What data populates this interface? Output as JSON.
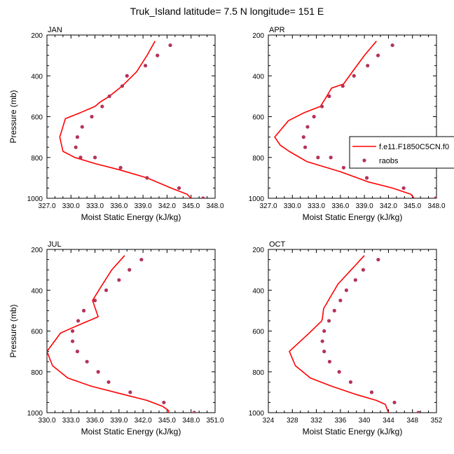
{
  "figure": {
    "title": "Truk_Island  latitude= 7.5 N longitude= 151 E"
  },
  "colors": {
    "model_line": "#ff0000",
    "obs_marker": "#b5335a",
    "axes": "#000000"
  },
  "legend": {
    "items": [
      {
        "label": "f.e11.F1850C5CN.f0",
        "style": "line"
      },
      {
        "label": "raobs",
        "style": "marker"
      }
    ]
  },
  "chart_data": [
    {
      "type": "line",
      "panel_label": "JAN",
      "xlabel": "Moist Static Energy (kJ/kg)",
      "ylabel": "Pressure (mb)",
      "xlim": [
        327,
        348
      ],
      "ylim": [
        200,
        1000
      ],
      "y_inverted": true,
      "xticks": [
        "327.0",
        "330.0",
        "333.0",
        "336.0",
        "339.0",
        "342.0",
        "345.0",
        "348.0"
      ],
      "yticks": [
        "200",
        "400",
        "600",
        "800",
        "1000"
      ],
      "series": [
        {
          "name": "f.e11.F1850C5CN.f0",
          "style": "line",
          "x": [
            340.5,
            339.5,
            338.2,
            336.4,
            334.8,
            333.6,
            333.0,
            331.2,
            329.3,
            328.6,
            329.0,
            330.5,
            333.0,
            336.0,
            339.5,
            342.5,
            344.5,
            345.0
          ],
          "y": [
            230,
            300,
            380,
            450,
            500,
            530,
            550,
            580,
            610,
            700,
            770,
            800,
            830,
            860,
            900,
            950,
            980,
            1000
          ]
        },
        {
          "name": "raobs",
          "style": "marker",
          "x": [
            342.4,
            340.8,
            339.3,
            337.0,
            336.4,
            334.8,
            333.9,
            332.6,
            331.4,
            330.8,
            330.6,
            331.2,
            333.0,
            336.2,
            339.5,
            343.5,
            346.5
          ],
          "y": [
            250,
            300,
            350,
            400,
            450,
            500,
            550,
            600,
            650,
            700,
            750,
            800,
            800,
            850,
            900,
            950,
            1000
          ]
        }
      ]
    },
    {
      "type": "line",
      "panel_label": "APR",
      "xlabel": "Moist Static Energy (kJ/kg)",
      "ylabel": "",
      "xlim": [
        327,
        348
      ],
      "ylim": [
        200,
        1000
      ],
      "y_inverted": true,
      "xticks": [
        "327.0",
        "330.0",
        "333.0",
        "336.0",
        "339.0",
        "342.0",
        "345.0",
        "348.0"
      ],
      "yticks": [
        "200",
        "400",
        "600",
        "800",
        "1000"
      ],
      "series": [
        {
          "name": "f.e11.F1850C5CN.f0",
          "style": "line",
          "x": [
            340.5,
            339.0,
            337.5,
            336.4,
            334.9,
            334.3,
            333.5,
            331.5,
            329.5,
            327.8,
            328.5,
            329.6,
            331.8,
            336.0,
            339.5,
            342.5,
            344.8,
            345.2
          ],
          "y": [
            230,
            300,
            380,
            440,
            460,
            500,
            550,
            580,
            620,
            700,
            740,
            770,
            820,
            870,
            920,
            950,
            980,
            1000
          ]
        },
        {
          "name": "raobs",
          "style": "marker",
          "x": [
            342.5,
            340.7,
            339.4,
            337.7,
            336.3,
            334.6,
            333.7,
            332.7,
            331.9,
            331.4,
            331.6,
            333.2,
            334.8,
            336.4,
            339.3,
            343.9,
            347.9
          ],
          "y": [
            250,
            300,
            350,
            400,
            450,
            500,
            550,
            600,
            650,
            700,
            750,
            800,
            800,
            850,
            900,
            950,
            1000
          ]
        }
      ]
    },
    {
      "type": "line",
      "panel_label": "JUL",
      "xlabel": "Moist Static Energy (kJ/kg)",
      "ylabel": "Pressure (mb)",
      "xlim": [
        330,
        351
      ],
      "ylim": [
        200,
        1000
      ],
      "y_inverted": true,
      "xticks": [
        "330.0",
        "333.0",
        "336.0",
        "339.0",
        "342.0",
        "345.0",
        "348.0",
        "351.0"
      ],
      "yticks": [
        "200",
        "400",
        "600",
        "800",
        "1000"
      ],
      "series": [
        {
          "name": "f.e11.F1850C5CN.f0",
          "style": "line",
          "x": [
            339.7,
            338.1,
            336.8,
            335.7,
            336.4,
            334.6,
            333.4,
            331.7,
            330.0,
            330.7,
            332.6,
            335.5,
            339.5,
            342.5,
            344.5,
            345.2,
            345.2
          ],
          "y": [
            230,
            300,
            380,
            450,
            530,
            560,
            580,
            610,
            700,
            770,
            830,
            870,
            910,
            940,
            970,
            990,
            1000
          ]
        },
        {
          "name": "raobs",
          "style": "marker",
          "x": [
            341.8,
            340.3,
            339.0,
            337.4,
            336.0,
            334.6,
            333.9,
            333.2,
            333.2,
            333.8,
            335.0,
            336.4,
            337.7,
            340.4,
            344.6,
            348.4
          ],
          "y": [
            250,
            300,
            350,
            400,
            450,
            500,
            550,
            600,
            650,
            700,
            750,
            800,
            850,
            900,
            950,
            1000
          ]
        }
      ]
    },
    {
      "type": "line",
      "panel_label": "OCT",
      "xlabel": "Moist Static Energy (kJ/kg)",
      "ylabel": "",
      "xlim": [
        324,
        352
      ],
      "ylim": [
        200,
        1000
      ],
      "y_inverted": true,
      "xticks": [
        "324",
        "328",
        "332",
        "336",
        "340",
        "344",
        "348",
        "352"
      ],
      "yticks": [
        "200",
        "400",
        "600",
        "800",
        "1000"
      ],
      "series": [
        {
          "name": "f.e11.F1850C5CN.f0",
          "style": "line",
          "x": [
            340.0,
            337.8,
            335.6,
            334.4,
            333.2,
            333.0,
            332.9,
            330.8,
            327.5,
            328.5,
            331.0,
            334.5,
            338.5,
            342.0,
            343.5,
            344.0
          ],
          "y": [
            230,
            300,
            370,
            430,
            490,
            540,
            550,
            610,
            700,
            770,
            830,
            870,
            910,
            940,
            960,
            1000
          ]
        },
        {
          "name": "raobs",
          "style": "marker",
          "x": [
            342.3,
            339.8,
            338.5,
            337.0,
            336.0,
            335.0,
            334.1,
            333.3,
            333.0,
            333.3,
            334.2,
            335.8,
            337.7,
            341.2,
            345.0,
            349.0
          ],
          "y": [
            250,
            300,
            350,
            400,
            450,
            500,
            550,
            600,
            650,
            700,
            750,
            800,
            850,
            900,
            950,
            1000
          ]
        }
      ]
    }
  ]
}
